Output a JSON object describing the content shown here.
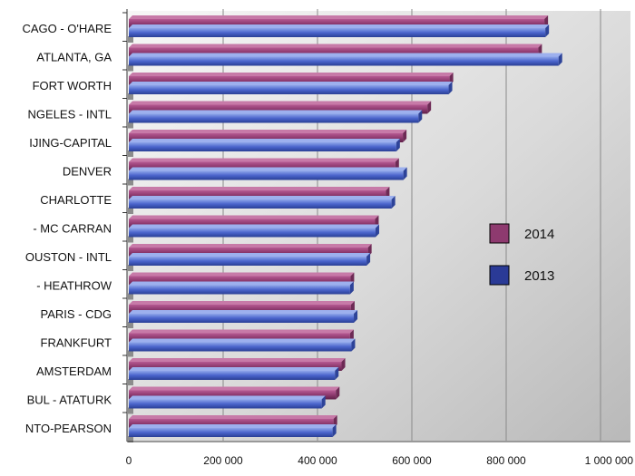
{
  "chart_data": {
    "type": "bar",
    "orientation": "horizontal",
    "categories": [
      "CAGO - O'HARE",
      "ATLANTA, GA",
      "FORT WORTH",
      "NGELES - INTL",
      "IJING-CAPITAL",
      "DENVER",
      "CHARLOTTE",
      "- MC CARRAN",
      "OUSTON - INTL",
      "- HEATHROW",
      "PARIS - CDG",
      "FRANKFURT",
      "AMSTERDAM",
      "BUL - ATATURK",
      "NTO-PEARSON"
    ],
    "series": [
      {
        "name": "2014",
        "color": "#8e3a6f",
        "values": [
          881000,
          868000,
          680000,
          633000,
          581000,
          565000,
          545000,
          522000,
          507000,
          470000,
          471000,
          469000,
          451000,
          439000,
          434000
        ]
      },
      {
        "name": "2013",
        "color": "#3a54c8",
        "values": [
          883000,
          911000,
          678000,
          614000,
          567000,
          582000,
          557000,
          523000,
          504000,
          469000,
          477000,
          472000,
          437000,
          409000,
          432000
        ]
      }
    ],
    "xlim": [
      0,
      1000000
    ],
    "xticks": [
      "0",
      "200 000",
      "400 000",
      "600 000",
      "800 000",
      "1 000 000"
    ],
    "grid": true,
    "legend_position": "right"
  }
}
